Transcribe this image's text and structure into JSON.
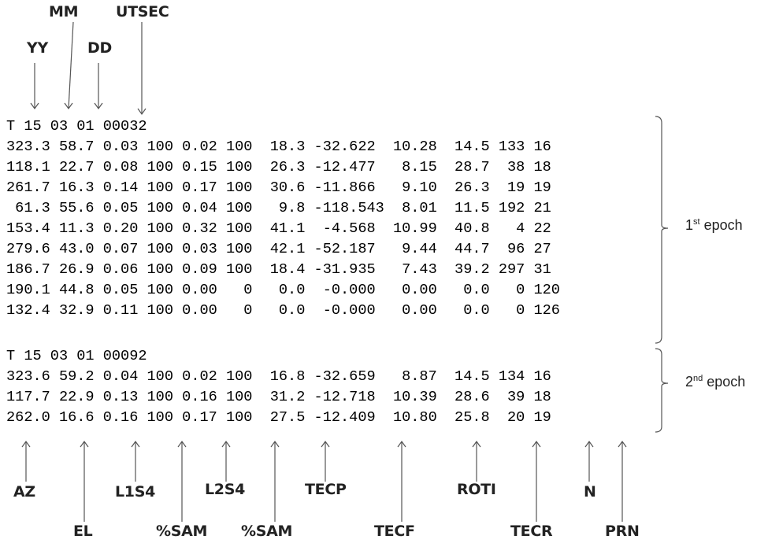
{
  "header_labels": {
    "mm": "MM",
    "utsec": "UTSEC",
    "yy": "YY",
    "dd": "DD"
  },
  "data_lines": [
    "T 15 03 01 00032",
    "323.3 58.7 0.03 100 0.02 100  18.3 -32.622  10.28  14.5 133 16",
    "118.1 22.7 0.08 100 0.15 100  26.3 -12.477   8.15  28.7  38 18",
    "261.7 16.3 0.14 100 0.17 100  30.6 -11.866   9.10  26.3  19 19",
    " 61.3 55.6 0.05 100 0.04 100   9.8 -118.543  8.01  11.5 192 21",
    "153.4 11.3 0.20 100 0.32 100  41.1  -4.568  10.99  40.8   4 22",
    "279.6 43.0 0.07 100 0.03 100  42.1 -52.187   9.44  44.7  96 27",
    "186.7 26.9 0.06 100 0.09 100  18.4 -31.935   7.43  39.2 297 31",
    "190.1 44.8 0.05 100 0.00   0   0.0  -0.000   0.00   0.0   0 120",
    "132.4 32.9 0.11 100 0.00   0   0.0  -0.000   0.00   0.0   0 126",
    "T 15 03 01 00092",
    "323.6 59.2 0.04 100 0.02 100  16.8 -32.659   8.87  14.5 134 16",
    "117.7 22.9 0.13 100 0.16 100  31.2 -12.718  10.39  28.6  39 18",
    "262.0 16.6 0.16 100 0.17 100  27.5 -12.409  10.80  25.8  20 19"
  ],
  "epochs": [
    {
      "ordinal": "1",
      "suffix": "st",
      "word": " epoch"
    },
    {
      "ordinal": "2",
      "suffix": "nd",
      "word": " epoch"
    }
  ],
  "column_labels_upper": {
    "az": "AZ",
    "l1s4": "L1S4",
    "l2s4": "L2S4",
    "tecp": "TECP",
    "roti": "ROTI",
    "n": "N"
  },
  "column_labels_lower": {
    "el": "EL",
    "sam1": "%SAM",
    "sam2": "%SAM",
    "tecf": "TECF",
    "tecr": "TECR",
    "prn": "PRN"
  }
}
